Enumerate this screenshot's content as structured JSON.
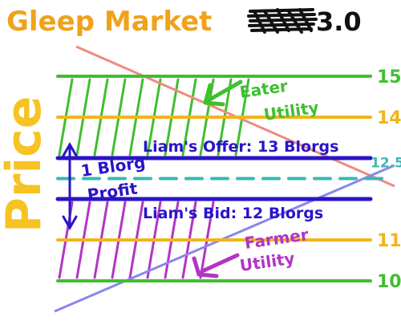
{
  "title": {
    "prefix": "Gleep Market",
    "redacted": "XXXX",
    "suffix": "3.0"
  },
  "y_axis_label": "Price",
  "levels": [
    {
      "name": "eater-top",
      "value": 15,
      "label": "15",
      "color": "#3fbf2f"
    },
    {
      "name": "eater-utility",
      "value": 14,
      "label": "14",
      "color": "#f2b41b"
    },
    {
      "name": "liams-offer",
      "value": 13,
      "label": "",
      "color": "#2a14c8"
    },
    {
      "name": "midpoint",
      "value": 12.5,
      "label": "12.5",
      "color": "#39b8b5"
    },
    {
      "name": "liams-bid",
      "value": 12,
      "label": "",
      "color": "#2a14c8"
    },
    {
      "name": "farmer-utility",
      "value": 11,
      "label": "11",
      "color": "#f2b41b"
    },
    {
      "name": "farmer-bottom",
      "value": 10,
      "label": "10",
      "color": "#3fbf2f"
    }
  ],
  "annotations": {
    "eater": [
      "Eater",
      "Utility"
    ],
    "farmer": [
      "Farmer",
      "Utility"
    ],
    "offer": "Liam's Offer: 13 Blorgs",
    "bid": "Liam's Bid: 12 Blorgs",
    "profit": [
      "1 Blorg",
      "Profit"
    ]
  },
  "colors": {
    "title": "#f0a21a",
    "axis_label": "#f7c322",
    "eater_hatch": "#3fbf2f",
    "farmer_hatch": "#b235c4",
    "farmer_arrow": "#b235c4",
    "eater_arrow": "#3fbf2f",
    "profit": "#2a14c8",
    "demand_line": "#f08a80",
    "supply_line": "#8a86ee",
    "redact": "#111111"
  }
}
